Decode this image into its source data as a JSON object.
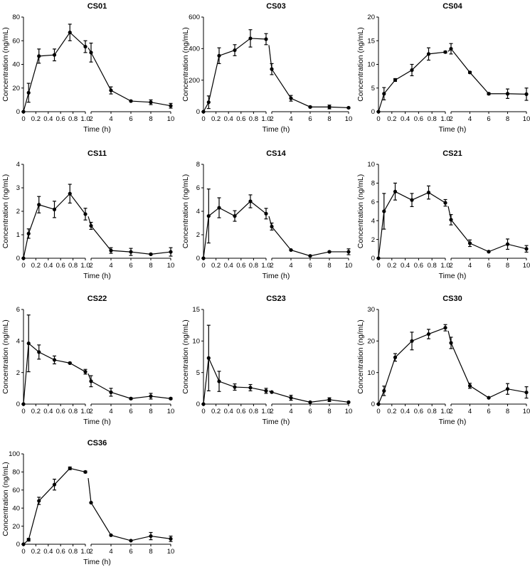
{
  "figure": {
    "xlabel": "Time (h)",
    "ylabel": "Concentration (ng/mL)",
    "x_early_ticks": [
      0,
      0.2,
      0.4,
      0.6,
      0.8,
      1.0
    ],
    "x_early_tick_labels": [
      "0",
      "0.2",
      "0.4",
      "0.6",
      "0.8",
      "1.0"
    ],
    "x_late_ticks": [
      2,
      4,
      6,
      8,
      10
    ],
    "x_late_tick_labels": [
      "2",
      "4",
      "6",
      "8",
      "10"
    ]
  },
  "chart_data": [
    {
      "type": "line",
      "title": "CS01",
      "xlabel": "Time (h)",
      "ylabel": "Concentration (ng/mL)",
      "ylim": [
        0,
        80
      ],
      "yticks": [
        0,
        20,
        40,
        60,
        80
      ],
      "ytick_labels": [
        "0",
        "20",
        "40",
        "60",
        "80"
      ],
      "x": [
        0,
        0.083,
        0.25,
        0.5,
        0.75,
        1.0,
        2,
        4,
        6,
        8,
        10
      ],
      "values": [
        0,
        16,
        47,
        48,
        67,
        55,
        50,
        18,
        9,
        8,
        5
      ],
      "errors": [
        0,
        8,
        6,
        5,
        7,
        5,
        8,
        3,
        0.5,
        2,
        2
      ]
    },
    {
      "type": "line",
      "title": "CS03",
      "xlabel": "Time (h)",
      "ylabel": "Concentration (ng/mL)",
      "ylim": [
        0,
        600
      ],
      "yticks": [
        0,
        200,
        400,
        600
      ],
      "ytick_labels": [
        "0",
        "200",
        "400",
        "600"
      ],
      "x": [
        0,
        0.083,
        0.25,
        0.5,
        0.75,
        1.0,
        2,
        4,
        6,
        8,
        10
      ],
      "values": [
        0,
        60,
        355,
        390,
        465,
        460,
        270,
        85,
        30,
        30,
        25
      ],
      "errors": [
        0,
        40,
        50,
        35,
        55,
        35,
        35,
        18,
        5,
        12,
        4
      ]
    },
    {
      "type": "line",
      "title": "CS04",
      "xlabel": "Time (h)",
      "ylabel": "Concentration (ng/mL)",
      "ylim": [
        0,
        20
      ],
      "yticks": [
        0,
        5,
        10,
        15,
        20
      ],
      "ytick_labels": [
        "0",
        "5",
        "10",
        "15",
        "20"
      ],
      "x": [
        0,
        0.083,
        0.25,
        0.5,
        0.75,
        1.0,
        2,
        4,
        6,
        8,
        10
      ],
      "values": [
        0,
        3.8,
        6.7,
        8.8,
        12.2,
        12.6,
        13.3,
        8.3,
        3.8,
        3.8,
        3.7
      ],
      "errors": [
        0,
        1.3,
        0.3,
        1.2,
        1.3,
        0.2,
        1.1,
        0.2,
        0.2,
        1.0,
        1.3
      ]
    },
    {
      "type": "line",
      "title": "CS11",
      "xlabel": "Time (h)",
      "ylabel": "Concentration (ng/mL)",
      "ylim": [
        0,
        4
      ],
      "yticks": [
        0,
        1,
        2,
        3,
        4
      ],
      "ytick_labels": [
        "0",
        "1",
        "2",
        "3",
        "4"
      ],
      "x": [
        0,
        0.083,
        0.25,
        0.5,
        0.75,
        1.0,
        2,
        4,
        6,
        8,
        10
      ],
      "values": [
        0,
        1.05,
        2.28,
        2.08,
        2.75,
        1.88,
        1.38,
        0.33,
        0.27,
        0.17,
        0.27
      ],
      "errors": [
        0,
        0.2,
        0.35,
        0.35,
        0.4,
        0.25,
        0.15,
        0.12,
        0.15,
        0.03,
        0.18
      ]
    },
    {
      "type": "line",
      "title": "CS14",
      "xlabel": "Time (h)",
      "ylabel": "Concentration (ng/mL)",
      "ylim": [
        0,
        8
      ],
      "yticks": [
        0,
        2,
        4,
        6,
        8
      ],
      "ytick_labels": [
        "0",
        "2",
        "4",
        "6",
        "8"
      ],
      "x": [
        0,
        0.083,
        0.25,
        0.5,
        0.75,
        1.0,
        2,
        4,
        6,
        8,
        10
      ],
      "values": [
        0,
        3.6,
        4.3,
        3.6,
        4.85,
        3.8,
        2.7,
        0.7,
        0.2,
        0.55,
        0.55
      ],
      "errors": [
        0,
        2.3,
        0.85,
        0.45,
        0.55,
        0.45,
        0.3,
        0.05,
        0.05,
        0.05,
        0.25
      ]
    },
    {
      "type": "line",
      "title": "CS21",
      "xlabel": "Time (h)",
      "ylabel": "Concentration (ng/mL)",
      "ylim": [
        0,
        10
      ],
      "yticks": [
        0,
        2,
        4,
        6,
        8,
        10
      ],
      "ytick_labels": [
        "0",
        "2",
        "4",
        "6",
        "8",
        "10"
      ],
      "x": [
        0,
        0.083,
        0.25,
        0.5,
        0.75,
        1.0,
        2,
        4,
        6,
        8,
        10
      ],
      "values": [
        0,
        5.0,
        7.1,
        6.2,
        7.0,
        5.9,
        4.1,
        1.6,
        0.7,
        1.5,
        1.0
      ],
      "errors": [
        0,
        1.9,
        0.9,
        0.7,
        0.7,
        0.35,
        0.55,
        0.35,
        0.05,
        0.55,
        0.35
      ]
    },
    {
      "type": "line",
      "title": "CS22",
      "xlabel": "Time (h)",
      "ylabel": "Concentration (ng/mL)",
      "ylim": [
        0,
        6
      ],
      "yticks": [
        0,
        2,
        4,
        6
      ],
      "ytick_labels": [
        "0",
        "2",
        "4",
        "6"
      ],
      "x": [
        0,
        0.083,
        0.25,
        0.5,
        0.75,
        1.0,
        2,
        4,
        6,
        8,
        10
      ],
      "values": [
        0,
        3.85,
        3.3,
        2.8,
        2.6,
        2.05,
        1.45,
        0.75,
        0.35,
        0.5,
        0.35
      ],
      "errors": [
        0,
        1.8,
        0.45,
        0.25,
        0.05,
        0.15,
        0.35,
        0.25,
        0.05,
        0.18,
        0.05
      ]
    },
    {
      "type": "line",
      "title": "CS23",
      "xlabel": "Time (h)",
      "ylabel": "Concentration (ng/mL)",
      "ylim": [
        0,
        15
      ],
      "yticks": [
        0,
        5,
        10,
        15
      ],
      "ytick_labels": [
        "0",
        "5",
        "10",
        "15"
      ],
      "x": [
        0,
        0.083,
        0.25,
        0.5,
        0.75,
        1.0,
        2,
        4,
        6,
        8,
        10
      ],
      "values": [
        0,
        7.3,
        3.6,
        2.7,
        2.6,
        2.1,
        1.9,
        1.0,
        0.3,
        0.7,
        0.3
      ],
      "errors": [
        0,
        5.2,
        1.6,
        0.5,
        0.5,
        0.4,
        0.1,
        0.4,
        0.05,
        0.3,
        0.05
      ]
    },
    {
      "type": "line",
      "title": "CS30",
      "xlabel": "Time (h)",
      "ylabel": "Concentration (ng/mL)",
      "ylim": [
        0,
        30
      ],
      "yticks": [
        0,
        10,
        20,
        30
      ],
      "ytick_labels": [
        "0",
        "10",
        "20",
        "30"
      ],
      "x": [
        0,
        0.083,
        0.25,
        0.5,
        0.75,
        1.0,
        2,
        4,
        6,
        8,
        10
      ],
      "values": [
        0,
        4.2,
        14.8,
        20.0,
        22.2,
        24.2,
        19.4,
        5.8,
        2.0,
        4.8,
        3.7
      ],
      "errors": [
        0,
        1.5,
        1.2,
        2.8,
        1.5,
        1.0,
        1.8,
        0.8,
        0.1,
        1.7,
        1.8
      ]
    },
    {
      "type": "line",
      "title": "CS36",
      "xlabel": "Time (h)",
      "ylabel": "Concentration (ng/mL)",
      "ylim": [
        0,
        100
      ],
      "yticks": [
        0,
        20,
        40,
        60,
        80,
        100
      ],
      "ytick_labels": [
        "0",
        "20",
        "40",
        "60",
        "80",
        "100"
      ],
      "x": [
        0,
        0.083,
        0.25,
        0.5,
        0.75,
        1.0,
        2,
        4,
        6,
        8,
        10
      ],
      "values": [
        0,
        5,
        48,
        66,
        84,
        80,
        46,
        10,
        4,
        9,
        6
      ],
      "errors": [
        0,
        1.5,
        4,
        6,
        1.5,
        1,
        0.5,
        0.5,
        0.5,
        4,
        3
      ]
    }
  ]
}
